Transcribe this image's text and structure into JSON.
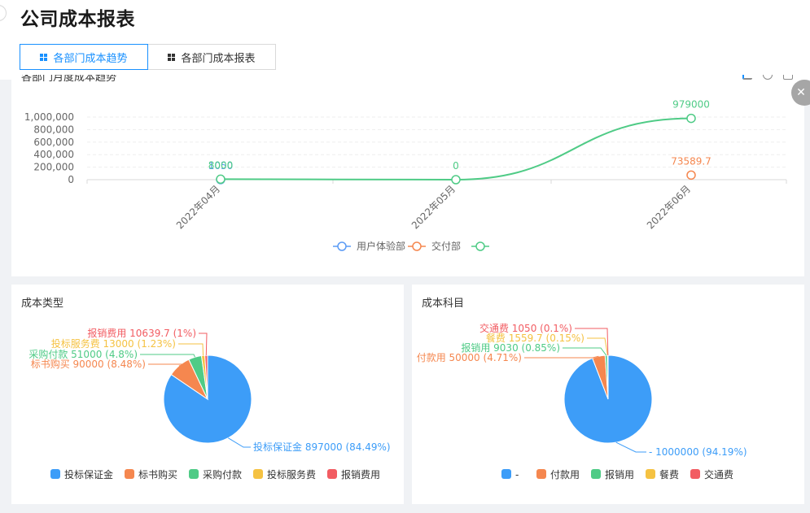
{
  "page": {
    "title": "公司成本报表"
  },
  "tabs": [
    {
      "label": "各部门成本趋势",
      "active": true
    },
    {
      "label": "各部门成本报表",
      "active": false
    }
  ],
  "trend_card": {
    "title": "各部门月度成本趋势"
  },
  "type_card": {
    "title": "成本类型"
  },
  "subject_card": {
    "title": "成本科目"
  },
  "icons": {
    "tab": "grid-icon",
    "expand": "expand-icon",
    "toolbar": [
      "bar-chart-icon",
      "refresh-icon",
      "save-image-icon"
    ]
  },
  "chart_data": [
    {
      "type": "line",
      "categories": [
        "2022年04月",
        "2022年05月",
        "2022年06月"
      ],
      "y_ticks": [
        "1,000,000",
        "800,000",
        "600,000",
        "400,000",
        "200,000",
        "0"
      ],
      "ylim": [
        0,
        1000000
      ],
      "legend_position": "bottom",
      "series": [
        {
          "name": "用户体验部",
          "color": "#5b9bf5",
          "values": [
            1050,
            null,
            null
          ],
          "labels": [
            "1050",
            "",
            ""
          ]
        },
        {
          "name": "交付部",
          "color": "#f5874f",
          "values": [
            null,
            null,
            73589.7
          ],
          "labels": [
            "",
            "",
            "73589.7"
          ]
        },
        {
          "name": "",
          "color": "#4fcb86",
          "values": [
            8000,
            0,
            979000
          ],
          "labels": [
            "8000",
            "0",
            "979000"
          ]
        }
      ]
    },
    {
      "type": "pie",
      "title": "成本类型",
      "slices": [
        {
          "name": "投标保证金",
          "value": 897000,
          "percent": "84.49%",
          "color": "#3d9df8"
        },
        {
          "name": "标书购买",
          "value": 90000,
          "percent": "8.48%",
          "color": "#f5874f"
        },
        {
          "name": "采购付款",
          "value": 51000,
          "percent": "4.8%",
          "color": "#4fcb86"
        },
        {
          "name": "投标服务费",
          "value": 13000,
          "percent": "1.23%",
          "color": "#f5c242"
        },
        {
          "name": "报销费用",
          "value": 10639.7,
          "percent": "1%",
          "color": "#f25c62"
        }
      ],
      "legend_position": "bottom"
    },
    {
      "type": "pie",
      "title": "成本科目",
      "slices": [
        {
          "name": "-",
          "value": 1000000,
          "percent": "94.19%",
          "color": "#3d9df8"
        },
        {
          "name": "付款用",
          "value": 50000,
          "percent": "4.71%",
          "color": "#f5874f"
        },
        {
          "name": "报销用",
          "value": 9030,
          "percent": "0.85%",
          "color": "#4fcb86"
        },
        {
          "name": "餐费",
          "value": 1559.7,
          "percent": "0.15%",
          "color": "#f5c242"
        },
        {
          "name": "交通费",
          "value": 1050,
          "percent": "0.1%",
          "color": "#f25c62"
        }
      ],
      "legend_position": "bottom"
    }
  ]
}
